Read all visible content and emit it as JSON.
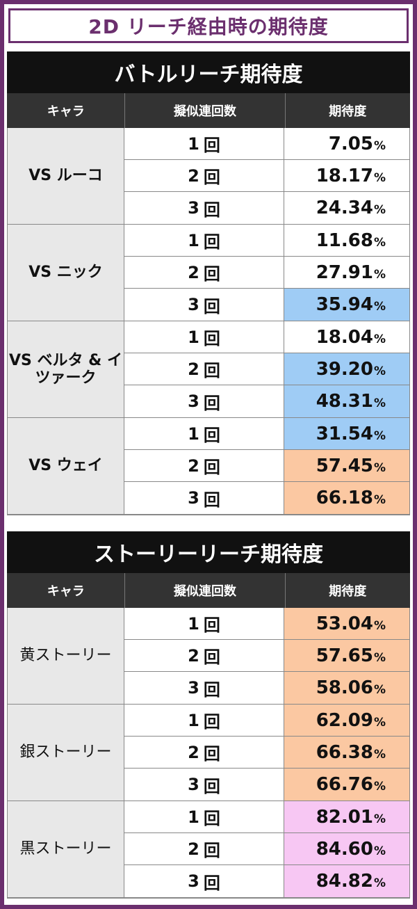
{
  "page_title": "2D リーチ経由時の期待度",
  "headers": {
    "chara": "キャラ",
    "count": "擬似連回数",
    "rate": "期待度"
  },
  "colors": {
    "frame": "#6b2f6e",
    "blue": "#9fccf5",
    "orange": "#fbc8a2",
    "pink": "#f7c7f3",
    "white": "#ffffff",
    "label_bg": "#e8e8e8"
  },
  "sections": [
    {
      "title": "バトルリーチ期待度",
      "groups": [
        {
          "name": "VS ルーコ",
          "rows": [
            {
              "count": "1",
              "unit": "回",
              "value": "7.05",
              "pct": "%",
              "color": "#ffffff"
            },
            {
              "count": "2",
              "unit": "回",
              "value": "18.17",
              "pct": "%",
              "color": "#ffffff"
            },
            {
              "count": "3",
              "unit": "回",
              "value": "24.34",
              "pct": "%",
              "color": "#ffffff"
            }
          ]
        },
        {
          "name": "VS ニック",
          "rows": [
            {
              "count": "1",
              "unit": "回",
              "value": "11.68",
              "pct": "%",
              "color": "#ffffff"
            },
            {
              "count": "2",
              "unit": "回",
              "value": "27.91",
              "pct": "%",
              "color": "#ffffff"
            },
            {
              "count": "3",
              "unit": "回",
              "value": "35.94",
              "pct": "%",
              "color": "#9fccf5"
            }
          ]
        },
        {
          "name": "VS ベルタ & イツァーク",
          "rows": [
            {
              "count": "1",
              "unit": "回",
              "value": "18.04",
              "pct": "%",
              "color": "#ffffff"
            },
            {
              "count": "2",
              "unit": "回",
              "value": "39.20",
              "pct": "%",
              "color": "#9fccf5"
            },
            {
              "count": "3",
              "unit": "回",
              "value": "48.31",
              "pct": "%",
              "color": "#9fccf5"
            }
          ]
        },
        {
          "name": "VS ウェイ",
          "rows": [
            {
              "count": "1",
              "unit": "回",
              "value": "31.54",
              "pct": "%",
              "color": "#9fccf5"
            },
            {
              "count": "2",
              "unit": "回",
              "value": "57.45",
              "pct": "%",
              "color": "#fbc8a2"
            },
            {
              "count": "3",
              "unit": "回",
              "value": "66.18",
              "pct": "%",
              "color": "#fbc8a2"
            }
          ]
        }
      ]
    },
    {
      "title": "ストーリーリーチ期待度",
      "groups": [
        {
          "name": "黄ストーリー",
          "rows": [
            {
              "count": "1",
              "unit": "回",
              "value": "53.04",
              "pct": "%",
              "color": "#fbc8a2"
            },
            {
              "count": "2",
              "unit": "回",
              "value": "57.65",
              "pct": "%",
              "color": "#fbc8a2"
            },
            {
              "count": "3",
              "unit": "回",
              "value": "58.06",
              "pct": "%",
              "color": "#fbc8a2"
            }
          ]
        },
        {
          "name": "銀ストーリー",
          "rows": [
            {
              "count": "1",
              "unit": "回",
              "value": "62.09",
              "pct": "%",
              "color": "#fbc8a2"
            },
            {
              "count": "2",
              "unit": "回",
              "value": "66.38",
              "pct": "%",
              "color": "#fbc8a2"
            },
            {
              "count": "3",
              "unit": "回",
              "value": "66.76",
              "pct": "%",
              "color": "#fbc8a2"
            }
          ]
        },
        {
          "name": "黒ストーリー",
          "rows": [
            {
              "count": "1",
              "unit": "回",
              "value": "82.01",
              "pct": "%",
              "color": "#f7c7f3"
            },
            {
              "count": "2",
              "unit": "回",
              "value": "84.60",
              "pct": "%",
              "color": "#f7c7f3"
            },
            {
              "count": "3",
              "unit": "回",
              "value": "84.82",
              "pct": "%",
              "color": "#f7c7f3"
            }
          ]
        }
      ]
    }
  ]
}
